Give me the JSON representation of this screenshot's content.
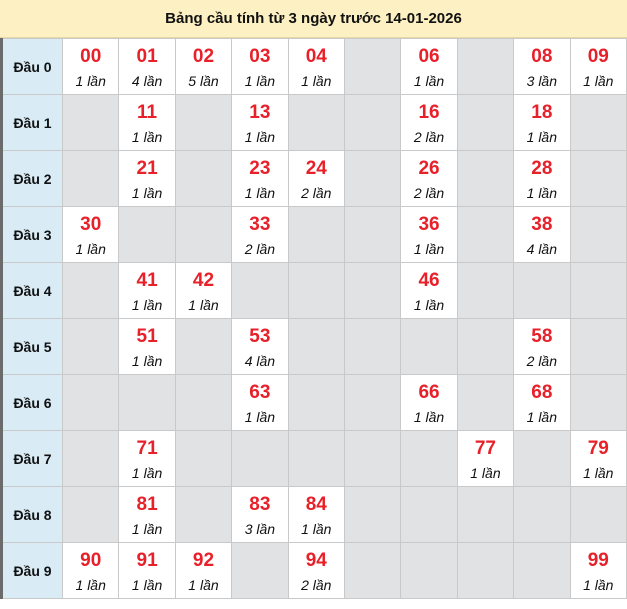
{
  "title": "Bảng cầu tính từ 3 ngày trước 14-01-2026",
  "colors": {
    "header_bg": "#fdf0c2",
    "row_head_bg": "#d9ecf6",
    "empty_cell_bg": "#e1e2e4",
    "number_color": "#e8202a"
  },
  "rows": [
    {
      "label": "Đầu 0",
      "cells": [
        {
          "num": "00",
          "count": "1 lần"
        },
        {
          "num": "01",
          "count": "4 lần"
        },
        {
          "num": "02",
          "count": "5 lần"
        },
        {
          "num": "03",
          "count": "1 lần"
        },
        {
          "num": "04",
          "count": "1 lần"
        },
        null,
        {
          "num": "06",
          "count": "1 lần"
        },
        null,
        {
          "num": "08",
          "count": "3 lần"
        },
        {
          "num": "09",
          "count": "1 lần"
        }
      ]
    },
    {
      "label": "Đầu 1",
      "cells": [
        null,
        {
          "num": "11",
          "count": "1 lần"
        },
        null,
        {
          "num": "13",
          "count": "1 lần"
        },
        null,
        null,
        {
          "num": "16",
          "count": "2 lần"
        },
        null,
        {
          "num": "18",
          "count": "1 lần"
        },
        null
      ]
    },
    {
      "label": "Đầu 2",
      "cells": [
        null,
        {
          "num": "21",
          "count": "1 lần"
        },
        null,
        {
          "num": "23",
          "count": "1 lần"
        },
        {
          "num": "24",
          "count": "2 lần"
        },
        null,
        {
          "num": "26",
          "count": "2 lần"
        },
        null,
        {
          "num": "28",
          "count": "1 lần"
        },
        null
      ]
    },
    {
      "label": "Đầu 3",
      "cells": [
        {
          "num": "30",
          "count": "1 lần"
        },
        null,
        null,
        {
          "num": "33",
          "count": "2 lần"
        },
        null,
        null,
        {
          "num": "36",
          "count": "1 lần"
        },
        null,
        {
          "num": "38",
          "count": "4 lần"
        },
        null
      ]
    },
    {
      "label": "Đầu 4",
      "cells": [
        null,
        {
          "num": "41",
          "count": "1 lần"
        },
        {
          "num": "42",
          "count": "1 lần"
        },
        null,
        null,
        null,
        {
          "num": "46",
          "count": "1 lần"
        },
        null,
        null,
        null
      ]
    },
    {
      "label": "Đầu 5",
      "cells": [
        null,
        {
          "num": "51",
          "count": "1 lần"
        },
        null,
        {
          "num": "53",
          "count": "4 lần"
        },
        null,
        null,
        null,
        null,
        {
          "num": "58",
          "count": "2 lần"
        },
        null
      ]
    },
    {
      "label": "Đầu 6",
      "cells": [
        null,
        null,
        null,
        {
          "num": "63",
          "count": "1 lần"
        },
        null,
        null,
        {
          "num": "66",
          "count": "1 lần"
        },
        null,
        {
          "num": "68",
          "count": "1 lần"
        },
        null
      ]
    },
    {
      "label": "Đầu 7",
      "cells": [
        null,
        {
          "num": "71",
          "count": "1 lần"
        },
        null,
        null,
        null,
        null,
        null,
        {
          "num": "77",
          "count": "1 lần"
        },
        null,
        {
          "num": "79",
          "count": "1 lần"
        }
      ]
    },
    {
      "label": "Đầu 8",
      "cells": [
        null,
        {
          "num": "81",
          "count": "1 lần"
        },
        null,
        {
          "num": "83",
          "count": "3 lần"
        },
        {
          "num": "84",
          "count": "1 lần"
        },
        null,
        null,
        null,
        null,
        null
      ]
    },
    {
      "label": "Đầu 9",
      "cells": [
        {
          "num": "90",
          "count": "1 lần"
        },
        {
          "num": "91",
          "count": "1 lần"
        },
        {
          "num": "92",
          "count": "1 lần"
        },
        null,
        {
          "num": "94",
          "count": "2 lần"
        },
        null,
        null,
        null,
        null,
        {
          "num": "99",
          "count": "1 lần"
        }
      ]
    }
  ]
}
